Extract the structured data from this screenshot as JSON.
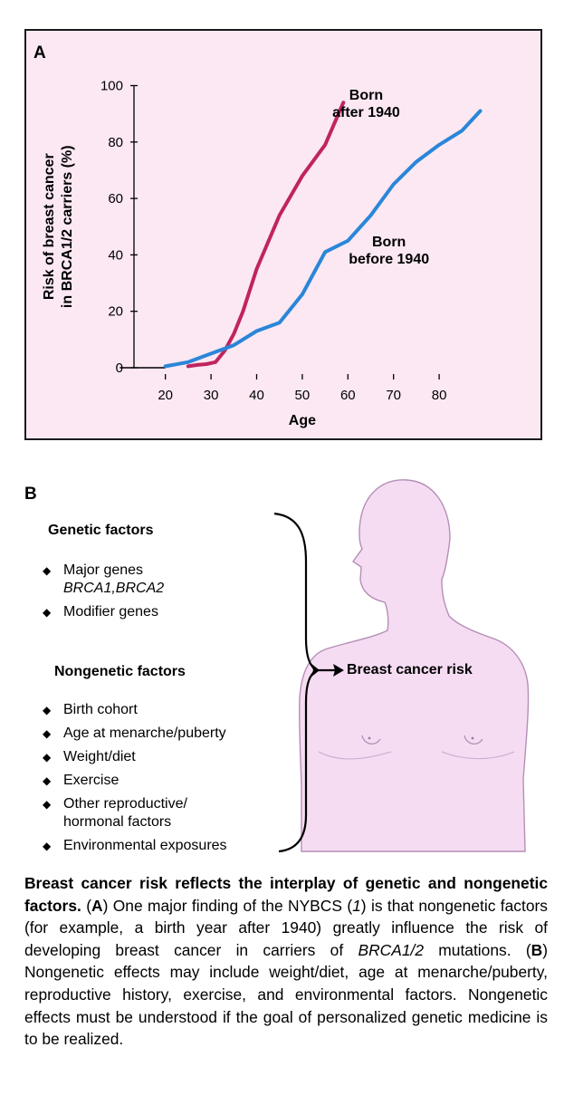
{
  "panel_a": {
    "label": "A"
  },
  "chart_data": {
    "type": "line",
    "title": "",
    "xlabel": "Age",
    "ylabel_line1": "Risk of breast cancer",
    "ylabel_line2": "in BRCA1/2 carriers (%)",
    "xlim": [
      10,
      90
    ],
    "ylim": [
      0,
      100
    ],
    "xticks": [
      20,
      30,
      40,
      50,
      60,
      70,
      80
    ],
    "yticks": [
      0,
      20,
      40,
      60,
      80,
      100
    ],
    "grid": false,
    "series": [
      {
        "name_line1": "Born",
        "name_line2": "after 1940",
        "color": "#c0245e",
        "x": [
          25,
          27,
          29,
          31,
          33,
          35,
          37,
          40,
          45,
          50,
          55,
          59
        ],
        "y": [
          0.5,
          1,
          1.3,
          2,
          6,
          12,
          20,
          35,
          54,
          68,
          79,
          94
        ]
      },
      {
        "name_line1": "Born",
        "name_line2": "before 1940",
        "color": "#2a86d8",
        "x": [
          20,
          25,
          30,
          35,
          40,
          45,
          50,
          55,
          60,
          65,
          70,
          75,
          80,
          85,
          89
        ],
        "y": [
          0.5,
          2,
          5,
          8,
          13,
          16,
          26,
          41,
          45,
          54,
          65,
          73,
          79,
          84,
          91
        ]
      }
    ],
    "baseline": {
      "x": [
        10,
        20
      ],
      "y": [
        0,
        0
      ]
    }
  },
  "panel_b": {
    "label": "B",
    "genetic": {
      "title": "Genetic factors",
      "items": [
        {
          "text": "Major genes",
          "sub": "BRCA1,BRCA2"
        },
        {
          "text": "Modifier genes"
        }
      ]
    },
    "nongenetic": {
      "title": "Nongenetic factors",
      "items": [
        {
          "text": "Birth cohort"
        },
        {
          "text": "Age at menarche/puberty"
        },
        {
          "text": "Weight/diet"
        },
        {
          "text": "Exercise"
        },
        {
          "text": "Other reproductive/",
          "sub": "hormonal factors"
        },
        {
          "text": "Environmental exposures"
        }
      ]
    },
    "outcome": "Breast cancer risk",
    "bullet": "◆",
    "figure_fill": "#f5dcf3"
  },
  "caption": {
    "bold": "Breast cancer risk reflects the interplay of genetic and nongenetic factors.",
    "p1": " (",
    "a": "A",
    "p2": ") One major finding of the NYBCS (",
    "ref": "1",
    "p3": ") is that nongenetic factors (for example, a birth year after 1940) greatly influence the risk of developing breast cancer in carriers of ",
    "gene": "BRCA1/2",
    "p4": " mutations. (",
    "b": "B",
    "p5": ") Nongenetic effects may include weight/diet, age at menarche/puberty, reproductive history, exercise, and environmental factors. Nongenetic effects must be understood if the goal of personalized genetic medicine is to be realized."
  }
}
